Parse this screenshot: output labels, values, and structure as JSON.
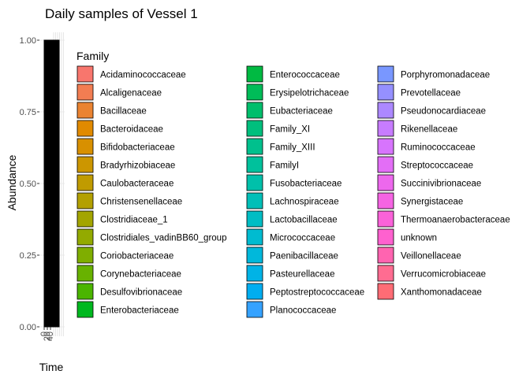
{
  "chart_data": {
    "type": "bar",
    "title": "Daily samples of Vessel 1",
    "xlabel": "Time",
    "ylabel": "Abundance",
    "ylim": [
      0,
      1
    ],
    "yticks": [
      "0.00",
      "0.25",
      "0.50",
      "0.75",
      "1.00"
    ],
    "xticks": [
      "0",
      "20",
      "40"
    ],
    "legend": {
      "title": "Family",
      "placement": "right",
      "entries": [
        {
          "name": "Acidaminococcaceae",
          "color": "#F8766D"
        },
        {
          "name": "Alcaligenaceae",
          "color": "#F27D52"
        },
        {
          "name": "Bacillaceae",
          "color": "#EA8331"
        },
        {
          "name": "Bacteroidaceae",
          "color": "#E18A00"
        },
        {
          "name": "Bifidobacteriaceae",
          "color": "#D89000"
        },
        {
          "name": "Bradyrhizobiaceae",
          "color": "#CC9600"
        },
        {
          "name": "Caulobacteraceae",
          "color": "#C09B00"
        },
        {
          "name": "Christensenellaceae",
          "color": "#B3A000"
        },
        {
          "name": "Clostridiaceae_1",
          "color": "#A3A500"
        },
        {
          "name": "Clostridiales_vadinBB60_group",
          "color": "#93AA00"
        },
        {
          "name": "Coriobacteriaceae",
          "color": "#7FAE00"
        },
        {
          "name": "Corynebacteriaceae",
          "color": "#68B200"
        },
        {
          "name": "Desulfovibrionaceae",
          "color": "#4BB500"
        },
        {
          "name": "Enterobacteriaceae",
          "color": "#00B81F"
        },
        {
          "name": "Enterococcaceae",
          "color": "#00BA42"
        },
        {
          "name": "Erysipelotrichaceae",
          "color": "#00BC58"
        },
        {
          "name": "Eubacteriaceae",
          "color": "#00BE6C"
        },
        {
          "name": "Family_XI",
          "color": "#00BF7D"
        },
        {
          "name": "Family_XIII",
          "color": "#00C08D"
        },
        {
          "name": "FamilyI",
          "color": "#00C19C"
        },
        {
          "name": "Fusobacteriaceae",
          "color": "#00C0AA"
        },
        {
          "name": "Lachnospiraceae",
          "color": "#00BFB8"
        },
        {
          "name": "Lactobacillaceae",
          "color": "#00BDC4"
        },
        {
          "name": "Micrococcaceae",
          "color": "#00BBD0"
        },
        {
          "name": "Paenibacillaceae",
          "color": "#00B8DB"
        },
        {
          "name": "Pasteurellaceae",
          "color": "#00B3E6"
        },
        {
          "name": "Peptostreptococcaceae",
          "color": "#00ADF0"
        },
        {
          "name": "Planococcaceae",
          "color": "#35A2FF"
        },
        {
          "name": "Porphyromonadaceae",
          "color": "#7997FF"
        },
        {
          "name": "Prevotellaceae",
          "color": "#9590FF"
        },
        {
          "name": "Pseudonocardiaceae",
          "color": "#AC88FF"
        },
        {
          "name": "Rikenellaceae",
          "color": "#C77CFF"
        },
        {
          "name": "Ruminococcaceae",
          "color": "#D774FD"
        },
        {
          "name": "Streptococcaceae",
          "color": "#E36EF6"
        },
        {
          "name": "Succinivibrionaceae",
          "color": "#ED68ED"
        },
        {
          "name": "Synergistaceae",
          "color": "#F564E3"
        },
        {
          "name": "Thermoanaerobacteraceae",
          "color": "#FA62D9"
        },
        {
          "name": "unknown",
          "color": "#FE61CF"
        },
        {
          "name": "Veillonellaceae",
          "color": "#FF64B0"
        },
        {
          "name": "Verrucomicrobiaceae",
          "color": "#FF6C91"
        },
        {
          "name": "Xanthomonadaceae",
          "color": "#FF6C75"
        }
      ]
    },
    "bar_outline_color": "#000000",
    "stack_total": 1.0
  }
}
